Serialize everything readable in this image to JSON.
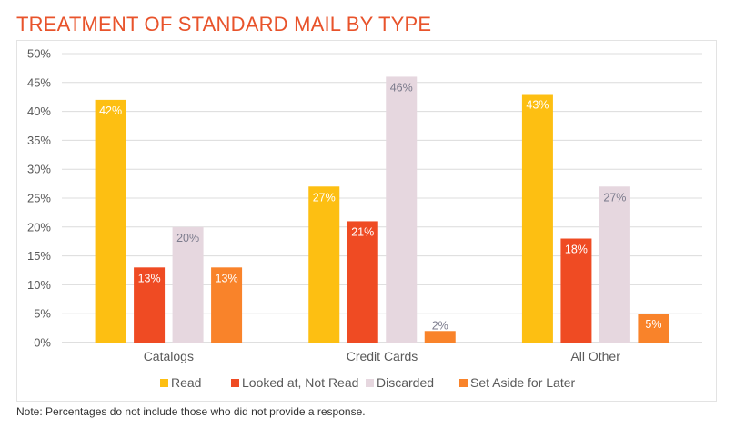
{
  "title": "TREATMENT OF STANDARD MAIL BY TYPE",
  "note": "Note: Percentages do not include those who did not provide a response.",
  "chart_data": {
    "type": "bar",
    "categories": [
      "Catalogs",
      "Credit Cards",
      "All Other"
    ],
    "series": [
      {
        "name": "Read",
        "color": "#fdbf12",
        "values": [
          42,
          27,
          43
        ],
        "labels": [
          "42%",
          "27%",
          "43%"
        ]
      },
      {
        "name": "Looked at, Not Read",
        "color": "#ef4b23",
        "values": [
          13,
          21,
          18
        ],
        "labels": [
          "13%",
          "21%",
          "18%"
        ]
      },
      {
        "name": "Discarded",
        "color": "#e6d7df",
        "values": [
          20,
          46,
          27
        ],
        "labels": [
          "20%",
          "46%",
          "27%"
        ]
      },
      {
        "name": "Set Aside for Later",
        "color": "#f9832a",
        "values": [
          13,
          2,
          5
        ],
        "labels": [
          "13%",
          "2%",
          "5%"
        ]
      }
    ],
    "y_ticks": [
      "0%",
      "5%",
      "10%",
      "15%",
      "20%",
      "25%",
      "30%",
      "35%",
      "40%",
      "45%",
      "50%"
    ],
    "ylim": [
      0,
      50
    ],
    "grid": true,
    "legend_position": "bottom"
  }
}
